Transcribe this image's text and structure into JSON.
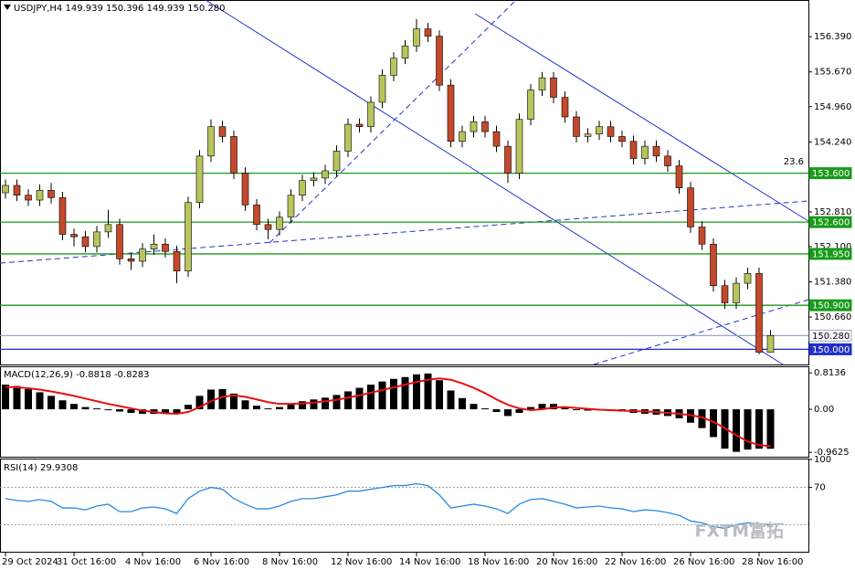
{
  "chart_data": [
    {
      "type": "candlestick",
      "title": "USDJPY,H4",
      "header_values": [
        "149.939",
        "150.396",
        "149.939",
        "150.280"
      ],
      "categories": [
        "29 Oct 2024",
        null,
        null,
        null,
        null,
        null,
        "31 Oct 16:00",
        null,
        null,
        null,
        null,
        null,
        "4 Nov 16:00",
        null,
        null,
        null,
        null,
        null,
        "6 Nov 16:00",
        null,
        null,
        null,
        null,
        null,
        "8 Nov 16:00",
        null,
        null,
        null,
        null,
        null,
        "12 Nov 16:00",
        null,
        null,
        null,
        null,
        null,
        "14 Nov 16:00",
        null,
        null,
        null,
        null,
        null,
        "18 Nov 16:00",
        null,
        null,
        null,
        null,
        null,
        "20 Nov 16:00",
        null,
        null,
        null,
        null,
        null,
        "22 Nov 16:00",
        null,
        null,
        null,
        null,
        null,
        "26 Nov 16:00",
        null,
        null,
        null,
        null,
        null,
        "28 Nov 16:00",
        null
      ],
      "open": [
        153.2,
        153.35,
        153.15,
        153.05,
        153.25,
        153.1,
        152.35,
        152.3,
        152.1,
        152.4,
        152.55,
        151.85,
        151.8,
        152.05,
        152.15,
        152.0,
        151.6,
        153.0,
        153.95,
        154.55,
        154.35,
        153.6,
        152.95,
        152.55,
        152.45,
        152.7,
        153.15,
        153.45,
        153.5,
        153.65,
        154.05,
        154.6,
        154.55,
        155.05,
        155.6,
        155.95,
        156.2,
        156.55,
        156.4,
        155.4,
        154.25,
        154.45,
        154.65,
        154.45,
        154.15,
        153.6,
        154.7,
        155.3,
        155.55,
        155.15,
        154.75,
        154.35,
        154.4,
        154.55,
        154.35,
        154.25,
        153.9,
        154.15,
        153.95,
        153.75,
        153.3,
        152.5,
        152.15,
        151.3,
        150.95,
        151.35,
        151.55,
        149.939
      ],
      "high": [
        153.47,
        153.47,
        153.27,
        153.37,
        153.4,
        153.22,
        152.47,
        152.42,
        152.52,
        152.85,
        152.67,
        151.97,
        152.17,
        152.35,
        152.27,
        152.12,
        153.12,
        154.07,
        154.7,
        154.67,
        154.47,
        153.72,
        153.07,
        152.67,
        152.82,
        153.27,
        153.57,
        153.62,
        153.77,
        154.17,
        154.72,
        154.72,
        155.17,
        155.72,
        156.07,
        156.32,
        156.75,
        156.67,
        156.52,
        155.52,
        154.57,
        154.77,
        154.77,
        154.57,
        154.27,
        154.82,
        155.42,
        155.67,
        155.67,
        155.27,
        154.87,
        154.52,
        154.67,
        154.67,
        154.47,
        154.37,
        154.27,
        154.27,
        154.07,
        153.87,
        153.42,
        152.62,
        152.27,
        151.42,
        151.47,
        151.67,
        151.67,
        150.396
      ],
      "low": [
        153.08,
        153.03,
        152.93,
        152.93,
        152.98,
        152.23,
        152.1,
        151.98,
        151.98,
        152.28,
        151.73,
        151.62,
        151.68,
        151.93,
        151.88,
        151.35,
        151.48,
        152.88,
        153.83,
        154.23,
        153.48,
        152.83,
        152.43,
        152.25,
        152.33,
        152.58,
        153.03,
        153.33,
        153.38,
        153.53,
        153.93,
        154.43,
        154.43,
        154.93,
        155.48,
        155.83,
        156.08,
        156.28,
        155.28,
        154.13,
        154.13,
        154.33,
        154.33,
        154.03,
        153.4,
        153.48,
        154.58,
        155.18,
        155.03,
        154.63,
        154.23,
        154.23,
        154.28,
        154.23,
        154.13,
        153.78,
        153.78,
        153.83,
        153.63,
        153.18,
        152.38,
        152.03,
        151.18,
        150.83,
        150.83,
        151.23,
        149.9,
        149.939
      ],
      "close": [
        153.35,
        153.15,
        153.05,
        153.25,
        153.1,
        152.35,
        152.3,
        152.1,
        152.4,
        152.55,
        151.85,
        151.8,
        152.05,
        152.15,
        152.0,
        151.6,
        153.0,
        153.95,
        154.55,
        154.35,
        153.6,
        152.95,
        152.55,
        152.45,
        152.7,
        153.15,
        153.45,
        153.5,
        153.65,
        154.05,
        154.6,
        154.55,
        155.05,
        155.6,
        155.95,
        156.2,
        156.55,
        156.4,
        155.4,
        154.25,
        154.45,
        154.65,
        154.45,
        154.15,
        153.6,
        154.7,
        155.3,
        155.55,
        155.15,
        154.75,
        154.35,
        154.4,
        154.55,
        154.35,
        154.25,
        153.9,
        154.15,
        153.95,
        153.75,
        153.3,
        152.5,
        152.15,
        151.3,
        150.95,
        151.35,
        151.55,
        149.939,
        150.28
      ],
      "up_color": "#b8c45c",
      "down_color": "#c4492c",
      "ylim": [
        149.69,
        157.14
      ],
      "yticks": [
        {
          "value": 156.39,
          "label": "156.390"
        },
        {
          "value": 155.67,
          "label": "155.670"
        },
        {
          "value": 154.96,
          "label": "154.960"
        },
        {
          "value": 154.24,
          "label": "154.240"
        },
        {
          "value": 152.81,
          "label": "152.810"
        },
        {
          "value": 152.1,
          "label": "152.100"
        },
        {
          "value": 151.38,
          "label": "151.380"
        },
        {
          "value": 150.66,
          "label": "150.660"
        }
      ],
      "levels": [
        {
          "value": 153.6,
          "label": "153.600",
          "color": "#1a9a1a",
          "label_fill": "#1a9a1a",
          "label_color": "#ffffff"
        },
        {
          "value": 152.6,
          "label": "152.600",
          "color": "#1a9a1a",
          "label_fill": "#1a9a1a",
          "label_color": "#ffffff"
        },
        {
          "value": 151.95,
          "label": "151.950",
          "color": "#1a9a1a",
          "label_fill": "#1a9a1a",
          "label_color": "#ffffff"
        },
        {
          "value": 150.9,
          "label": "150.900",
          "color": "#1a9a1a",
          "label_fill": "#1a9a1a",
          "label_color": "#ffffff"
        },
        {
          "value": 150.28,
          "label": "150.280",
          "color": "#9aa6c8",
          "label_fill": "#ffffff",
          "label_color": "#000000"
        },
        {
          "value": 150.0,
          "label": "150.000",
          "color": "#1f2fc8",
          "label_fill": "#1f2fc8",
          "label_color": "#ffffff"
        }
      ],
      "fib_label": "23.6"
    },
    {
      "type": "macd",
      "title": "MACD(12,26,9)",
      "histogram": [
        0.55,
        0.52,
        0.45,
        0.38,
        0.3,
        0.2,
        0.12,
        0.05,
        0.02,
        -0.02,
        -0.05,
        -0.08,
        -0.1,
        -0.1,
        -0.09,
        -0.08,
        0.1,
        0.3,
        0.44,
        0.45,
        0.35,
        0.2,
        0.08,
        0.02,
        0.05,
        0.12,
        0.18,
        0.22,
        0.26,
        0.32,
        0.4,
        0.48,
        0.55,
        0.62,
        0.68,
        0.72,
        0.78,
        0.8,
        0.65,
        0.42,
        0.25,
        0.12,
        0.02,
        -0.06,
        -0.15,
        -0.08,
        0.05,
        0.12,
        0.12,
        0.05,
        -0.02,
        -0.03,
        -0.02,
        -0.04,
        -0.05,
        -0.08,
        -0.1,
        -0.12,
        -0.15,
        -0.2,
        -0.3,
        -0.42,
        -0.62,
        -0.88,
        -0.95,
        -0.9,
        -0.88,
        -0.8818
      ],
      "signal": [
        0.5,
        0.49,
        0.47,
        0.44,
        0.4,
        0.35,
        0.3,
        0.24,
        0.18,
        0.12,
        0.07,
        0.02,
        -0.03,
        -0.06,
        -0.09,
        -0.1,
        -0.06,
        0.05,
        0.18,
        0.28,
        0.31,
        0.28,
        0.22,
        0.16,
        0.12,
        0.12,
        0.13,
        0.15,
        0.18,
        0.21,
        0.26,
        0.31,
        0.37,
        0.43,
        0.49,
        0.55,
        0.61,
        0.66,
        0.69,
        0.66,
        0.58,
        0.48,
        0.36,
        0.22,
        0.1,
        0.02,
        -0.02,
        0.0,
        0.04,
        0.05,
        0.03,
        0.01,
        -0.01,
        -0.02,
        -0.03,
        -0.04,
        -0.05,
        -0.06,
        -0.08,
        -0.1,
        -0.13,
        -0.18,
        -0.28,
        -0.42,
        -0.58,
        -0.72,
        -0.8,
        -0.8283
      ],
      "histogram_color": "#000000",
      "signal_color": "#e81010",
      "ylim": [
        -1.06,
        0.94
      ],
      "yticks": [
        0.8136,
        {
          "value": 0,
          "label": "0.00"
        },
        -0.9625
      ]
    },
    {
      "type": "rsi",
      "title": "RSI(14)",
      "values": [
        58,
        56,
        55,
        57,
        55,
        48,
        48,
        46,
        50,
        52,
        44,
        44,
        48,
        49,
        47,
        42,
        58,
        66,
        70,
        68,
        58,
        52,
        47,
        47,
        50,
        55,
        58,
        58,
        60,
        62,
        66,
        66,
        68,
        70,
        72,
        72,
        74,
        72,
        62,
        48,
        50,
        52,
        50,
        47,
        42,
        52,
        57,
        58,
        55,
        52,
        48,
        49,
        50,
        48,
        47,
        44,
        46,
        45,
        43,
        40,
        34,
        32,
        28,
        26,
        30,
        32,
        31,
        29.9308
      ],
      "color": "#2a8ae0",
      "ylim": [
        0,
        100
      ],
      "yticks": [
        100,
        70
      ],
      "levels": [
        70,
        30
      ]
    }
  ],
  "watermark": "FXTM富拓"
}
